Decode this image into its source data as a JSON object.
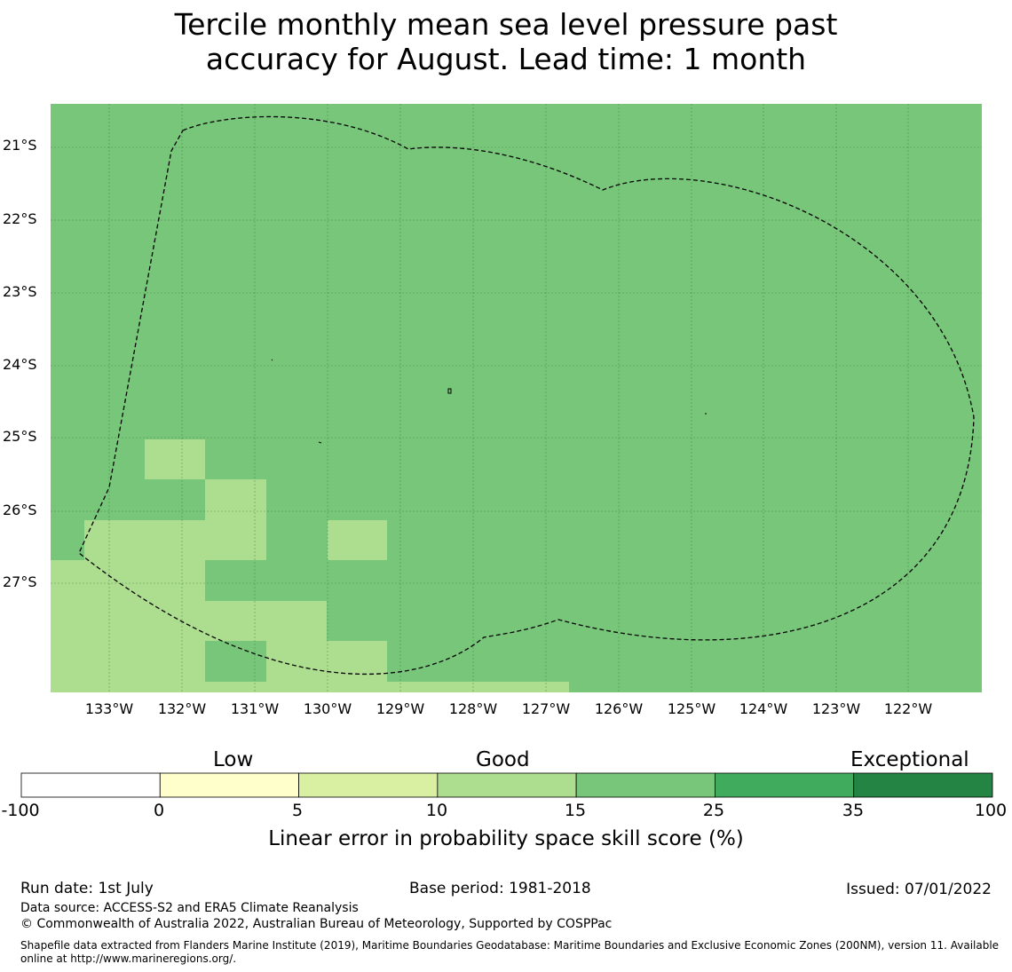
{
  "title": {
    "line1": "Tercile monthly mean sea level pressure past",
    "line2": "accuracy for August. Lead time: 1 month"
  },
  "map": {
    "lat_labels": [
      "21°S",
      "22°S",
      "23°S",
      "24°S",
      "25°S",
      "26°S",
      "27°S"
    ],
    "lon_labels": [
      "133°W",
      "132°W",
      "131°W",
      "130°W",
      "129°W",
      "128°W",
      "127°W",
      "126°W",
      "125°W",
      "124°W",
      "123°W",
      "122°W"
    ],
    "base_color": "#78c679",
    "light_color": "#addd8e",
    "boundary_style": "dashed",
    "light_cells_note": "lower-left region shows 10-15% skill"
  },
  "colorbar": {
    "categories": [
      "Low",
      "Good",
      "Exceptional"
    ],
    "ticks": [
      "-100",
      "0",
      "5",
      "10",
      "15",
      "25",
      "35",
      "100"
    ],
    "colors": [
      "#ffffff",
      "#ffffcc",
      "#d9f0a3",
      "#addd8e",
      "#78c679",
      "#41ab5d",
      "#238443"
    ],
    "label": "Linear error in probability space skill score (%)"
  },
  "footer": {
    "run_date": "Run date: 1st July",
    "base_period": "Base period: 1981-2018",
    "issued": "Issued: 07/01/2022",
    "data_source": "Data source: ACCESS-S2 and ERA5 Climate Reanalysis",
    "copyright": "© Commonwealth of Australia 2022, Australian Bureau of Meteorology, Supported by COSPPac",
    "shapefile": "Shapefile data extracted from Flanders Marine Institute (2019), Maritime Boundaries Geodatabase: Maritime Boundaries and Exclusive Economic Zones (200NM), version 11. Available online at http://www.marineregions.org/."
  }
}
